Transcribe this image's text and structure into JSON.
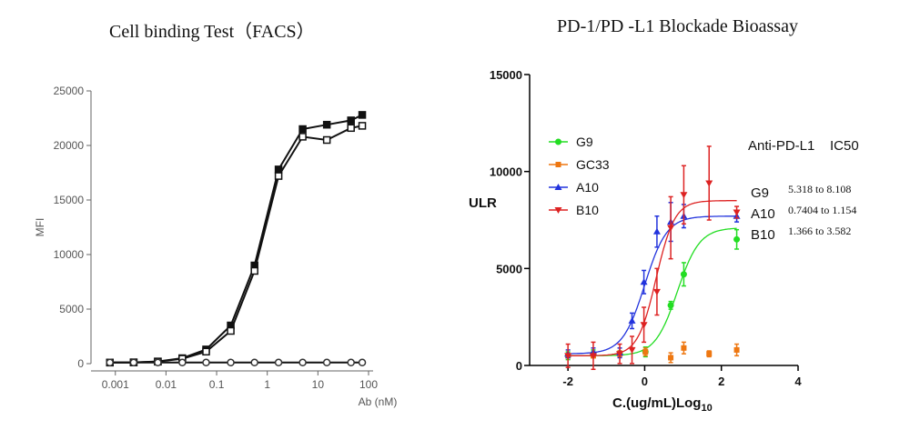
{
  "left_title": "Cell binding Test（FACS）",
  "right_title": "PD-1/PD -L1 Blockade Bioassay",
  "chart_data": [
    {
      "type": "scatter",
      "title": "Cell binding Test（FACS）",
      "xlabel": "Ab (nM)",
      "ylabel": "MFI",
      "x_scale": "log",
      "xlim": [
        0.0005,
        100
      ],
      "ylim": [
        0,
        25000
      ],
      "x_ticks": [
        "0.001",
        "0.01",
        "0.1",
        "1",
        "10",
        "100"
      ],
      "y_ticks": [
        "0",
        "5000",
        "10000",
        "15000",
        "20000",
        "25000"
      ],
      "grid": false,
      "series": [
        {
          "x": [
            0.00078,
            0.0023,
            0.0069,
            0.021,
            0.062,
            0.19,
            0.56,
            1.67,
            5,
            15,
            45,
            75
          ],
          "y": [
            100,
            120,
            200,
            500,
            1300,
            3500,
            9000,
            17800,
            21500,
            21900,
            22300,
            22800
          ]
        },
        {
          "x": [
            0.00078,
            0.0023,
            0.0069,
            0.021,
            0.062,
            0.19,
            0.56,
            1.67,
            5,
            15,
            45,
            75
          ],
          "y": [
            100,
            110,
            180,
            450,
            1100,
            3000,
            8500,
            17200,
            20800,
            20500,
            21600,
            21800
          ]
        },
        {
          "x": [
            0.00078,
            0.0023,
            0.0069,
            0.021,
            0.062,
            0.19,
            0.56,
            1.67,
            5,
            15,
            45,
            75
          ],
          "y": [
            100,
            100,
            100,
            100,
            100,
            100,
            100,
            100,
            100,
            100,
            100,
            100
          ]
        }
      ]
    },
    {
      "type": "line",
      "title": "PD-1/PD -L1 Blockade Bioassay",
      "xlabel_main": "C.(ug/mL)Log",
      "xlabel_sub": "10",
      "ylabel": "ULR",
      "xlim": [
        -3,
        4
      ],
      "ylim": [
        0,
        15000
      ],
      "x_ticks": [
        "-2",
        "0",
        "2",
        "4"
      ],
      "y_ticks": [
        "0",
        "5000",
        "10000",
        "15000"
      ],
      "grid": false,
      "legend_position": "top-left",
      "series": [
        {
          "name": "G9",
          "color": "#22dd22",
          "marker": "circle",
          "bottom": 500,
          "top": 7100,
          "log_ec50": 0.85,
          "hill": 1.5,
          "x": [
            -2,
            -1.34,
            -0.65,
            0.02,
            0.68,
            1.02,
            2.4
          ],
          "y": [
            500,
            600,
            600,
            700,
            3100,
            4700,
            6500
          ],
          "err": [
            200,
            200,
            150,
            250,
            200,
            600,
            500
          ]
        },
        {
          "name": "GC33",
          "color": "#ee7711",
          "marker": "square",
          "x": [
            -2,
            -1.34,
            -0.65,
            0.02,
            0.68,
            1.02,
            1.68,
            2.4
          ],
          "y": [
            500,
            500,
            600,
            700,
            400,
            900,
            600,
            800
          ],
          "err": [
            100,
            100,
            150,
            200,
            250,
            300,
            150,
            300
          ]
        },
        {
          "name": "A10",
          "color": "#2233dd",
          "marker": "triangle-up",
          "bottom": 600,
          "top": 7700,
          "log_ec50": 0.0,
          "hill": 1.5,
          "x": [
            -2,
            -1.34,
            -0.65,
            -0.33,
            -0.02,
            0.32,
            0.68,
            1.02,
            2.4
          ],
          "y": [
            600,
            700,
            650,
            2300,
            4300,
            6900,
            7400,
            7700,
            7700
          ],
          "err": [
            200,
            200,
            250,
            400,
            600,
            800,
            1000,
            600,
            300
          ]
        },
        {
          "name": "B10",
          "color": "#dd2222",
          "marker": "triangle-down",
          "bottom": 500,
          "top": 8500,
          "log_ec50": 0.3,
          "hill": 1.8,
          "x": [
            -2,
            -1.34,
            -0.65,
            -0.33,
            -0.02,
            0.32,
            0.68,
            1.02,
            1.68,
            2.4
          ],
          "y": [
            500,
            500,
            600,
            800,
            2100,
            3800,
            7100,
            8800,
            9400,
            7900
          ],
          "err": [
            600,
            700,
            500,
            700,
            900,
            1200,
            1600,
            1500,
            1900,
            300
          ]
        }
      ],
      "ic50": {
        "header_name": "Anti-PD-L1",
        "header_label": "IC50",
        "rows": [
          {
            "name": "G9",
            "value": "5.318 to 8.108"
          },
          {
            "name": "A10",
            "value": "0.7404 to 1.154"
          },
          {
            "name": "B10",
            "value": "1.366 to 3.582"
          }
        ]
      }
    }
  ]
}
